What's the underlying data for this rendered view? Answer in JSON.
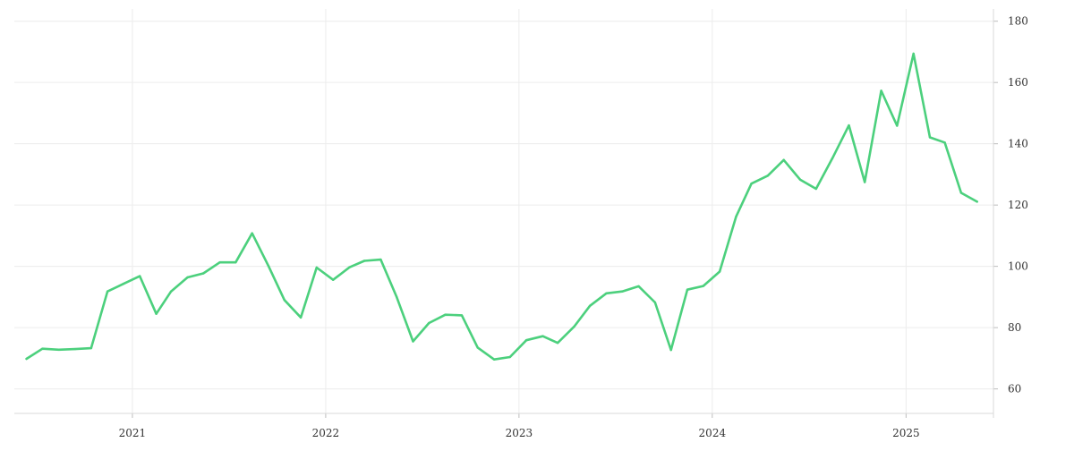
{
  "chart_data": {
    "type": "line",
    "title": "",
    "xlabel": "",
    "ylabel": "",
    "grid": true,
    "y_axis_position": "right",
    "x": [
      "2020-06",
      "2020-07",
      "2020-08",
      "2020-09",
      "2020-10",
      "2020-11",
      "2020-12",
      "2021-01",
      "2021-02",
      "2021-03",
      "2021-04",
      "2021-05",
      "2021-06",
      "2021-07",
      "2021-08",
      "2021-09",
      "2021-10",
      "2021-11",
      "2021-12",
      "2022-01",
      "2022-02",
      "2022-03",
      "2022-04",
      "2022-05",
      "2022-06",
      "2022-07",
      "2022-08",
      "2022-09",
      "2022-10",
      "2022-11",
      "2022-12",
      "2023-01",
      "2023-02",
      "2023-03",
      "2023-04",
      "2023-05",
      "2023-06",
      "2023-07",
      "2023-08",
      "2023-09",
      "2023-10",
      "2023-11",
      "2023-12",
      "2024-01",
      "2024-02",
      "2024-03",
      "2024-04",
      "2024-05",
      "2024-06",
      "2024-07",
      "2024-08",
      "2024-09",
      "2024-10",
      "2024-11",
      "2024-12",
      "2025-01",
      "2025-02",
      "2025-03",
      "2025-04",
      "2025-05"
    ],
    "series": [
      {
        "color": "#4cd07d",
        "values": [
          69.8,
          73.1,
          72.8,
          73.0,
          73.3,
          91.8,
          94.3,
          96.8,
          84.5,
          91.8,
          96.4,
          97.7,
          101.3,
          101.3,
          110.8,
          100.1,
          89.0,
          83.3,
          99.6,
          95.6,
          99.7,
          101.8,
          102.2,
          90.0,
          75.5,
          81.5,
          84.2,
          84.0,
          73.5,
          69.6,
          70.4,
          75.9,
          77.2,
          75.0,
          80.3,
          87.1,
          91.2,
          91.8,
          93.5,
          88.2,
          72.7,
          92.4,
          93.6,
          98.3,
          116.2,
          127.0,
          129.6,
          134.7,
          128.3,
          125.3,
          135.3,
          146.0,
          127.5,
          157.3,
          145.9,
          169.4,
          142.1,
          140.4,
          124.0,
          121.1
        ]
      }
    ],
    "ylim": [
      52,
      184
    ],
    "y_ticks": [
      60,
      80,
      100,
      120,
      140,
      160,
      180
    ],
    "x_ticks": [
      {
        "date": "2021-01",
        "label": "2021"
      },
      {
        "date": "2022-01",
        "label": "2022"
      },
      {
        "date": "2023-01",
        "label": "2023"
      },
      {
        "date": "2024-01",
        "label": "2024"
      },
      {
        "date": "2025-01",
        "label": "2025"
      }
    ],
    "x_range": [
      "2020-05-23",
      "2025-06-15"
    ]
  }
}
